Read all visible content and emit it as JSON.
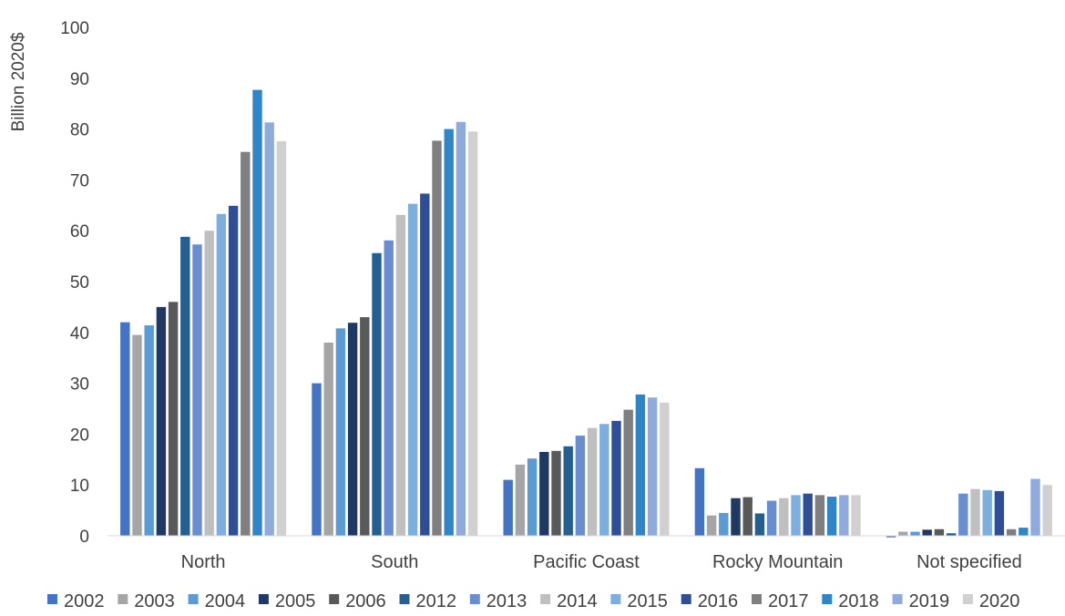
{
  "chart_data": {
    "type": "bar",
    "title": "",
    "xlabel": "",
    "ylabel": "Billion 2020$",
    "ylim": [
      0,
      100
    ],
    "yticks": [
      "0",
      "10",
      "20",
      "30",
      "40",
      "50",
      "60",
      "70",
      "80",
      "90",
      "100"
    ],
    "grid": false,
    "legend_position": "bottom",
    "categories": [
      "North",
      "South",
      "Pacific Coast",
      "Rocky Mountain",
      "Not specified"
    ],
    "series": [
      {
        "name": "2002",
        "color": "#4472C4",
        "values": [
          42.0,
          30.0,
          11.0,
          13.3,
          -0.3
        ]
      },
      {
        "name": "2003",
        "color": "#A5A5A5",
        "values": [
          39.5,
          38.0,
          14.0,
          4.0,
          0.8
        ]
      },
      {
        "name": "2004",
        "color": "#5B9BD5",
        "values": [
          41.4,
          40.8,
          15.2,
          4.5,
          0.8
        ]
      },
      {
        "name": "2005",
        "color": "#203864",
        "values": [
          45.0,
          41.9,
          16.5,
          7.4,
          1.2
        ]
      },
      {
        "name": "2006",
        "color": "#595959",
        "values": [
          46.0,
          43.0,
          16.7,
          7.6,
          1.3
        ]
      },
      {
        "name": "2012",
        "color": "#255E91",
        "values": [
          58.8,
          55.6,
          17.6,
          4.4,
          0.5
        ]
      },
      {
        "name": "2013",
        "color": "#698ED0",
        "values": [
          57.3,
          58.1,
          19.7,
          6.9,
          8.3
        ]
      },
      {
        "name": "2014",
        "color": "#BFBFBF",
        "values": [
          60.0,
          63.1,
          21.2,
          7.4,
          9.2
        ]
      },
      {
        "name": "2015",
        "color": "#7CAFDD",
        "values": [
          63.3,
          65.3,
          22.0,
          8.0,
          9.0
        ]
      },
      {
        "name": "2016",
        "color": "#2F4E98",
        "values": [
          64.9,
          67.3,
          22.6,
          8.3,
          8.8
        ]
      },
      {
        "name": "2017",
        "color": "#7F7F7F",
        "values": [
          75.5,
          77.7,
          24.8,
          8.0,
          1.3
        ]
      },
      {
        "name": "2018",
        "color": "#2E86C9",
        "values": [
          87.7,
          80.0,
          27.8,
          7.7,
          1.6
        ]
      },
      {
        "name": "2019",
        "color": "#8FAADC",
        "values": [
          81.3,
          81.4,
          27.2,
          8.0,
          11.2
        ]
      },
      {
        "name": "2020",
        "color": "#D0D0D0",
        "values": [
          77.6,
          79.5,
          26.2,
          8.0,
          10.0
        ]
      }
    ]
  }
}
